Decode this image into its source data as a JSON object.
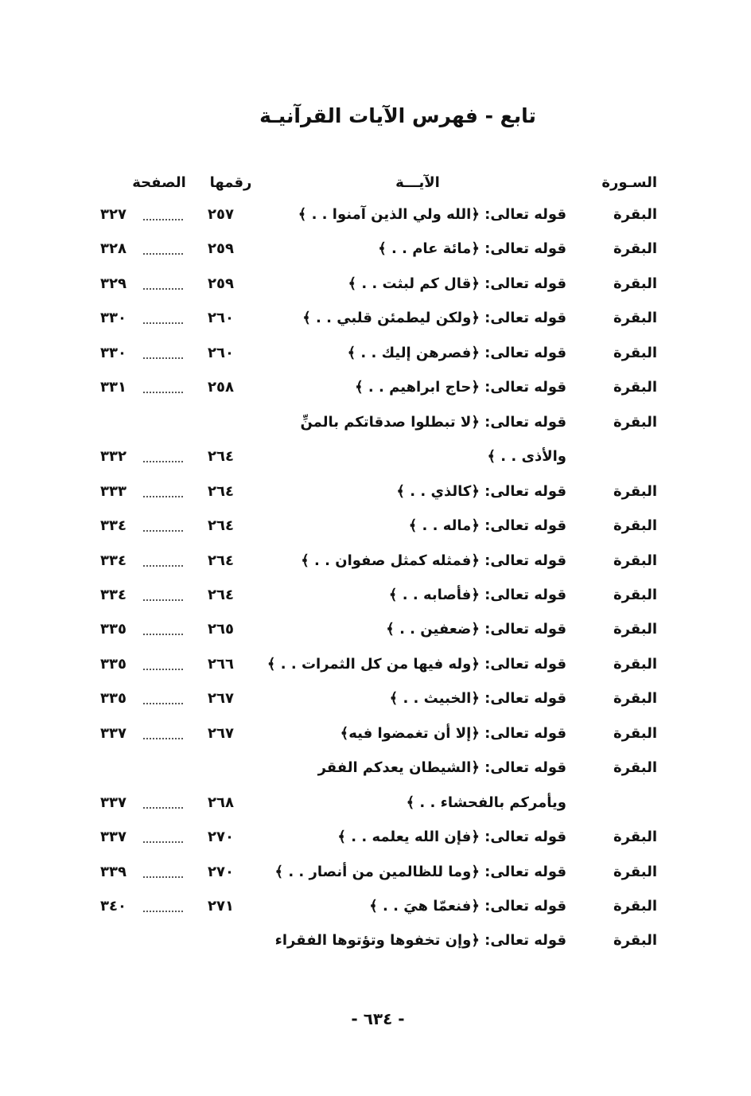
{
  "header": {
    "title": "تابع - فهرس الآيات القرآنيـة"
  },
  "table": {
    "columns": [
      "السـورة",
      "الآيـــة",
      "رقمها",
      "الصفحة"
    ],
    "rows": [
      {
        "surah": "البقرة",
        "verse": "قوله تعالى: ﴿الله ولي الذين آمنوا . . ﴾",
        "number": "٢٥٧",
        "page": "٣٢٧"
      },
      {
        "surah": "البقرة",
        "verse": "قوله تعالى: ﴿مائة عام . . ﴾",
        "number": "٢٥٩",
        "page": "٣٢٨"
      },
      {
        "surah": "البقرة",
        "verse": "قوله تعالى: ﴿قال كم لبثت . . ﴾",
        "number": "٢٥٩",
        "page": "٣٢٩"
      },
      {
        "surah": "البقرة",
        "verse": "قوله تعالى: ﴿ولكن ليطمئن قلبي . . ﴾",
        "number": "٢٦٠",
        "page": "٣٣٠"
      },
      {
        "surah": "البقرة",
        "verse": "قوله تعالى: ﴿فصرهن إليك . . ﴾",
        "number": "٢٦٠",
        "page": "٣٣٠"
      },
      {
        "surah": "البقرة",
        "verse": "قوله تعالى: ﴿حاج ابراهيم . . ﴾",
        "number": "٢٥٨",
        "page": "٣٣١"
      },
      {
        "surah": "البقرة",
        "verse": "قوله تعالى: ﴿لا تبطلوا صدقاتكم بالمنِّ"
      },
      {
        "verse": "والأذى . . ﴾",
        "number": "٢٦٤",
        "page": "٣٣٢"
      },
      {
        "surah": "البقرة",
        "verse": "قوله تعالى: ﴿كالذي . . ﴾",
        "number": "٢٦٤",
        "page": "٣٣٣"
      },
      {
        "surah": "البقرة",
        "verse": "قوله تعالى: ﴿ماله . . ﴾",
        "number": "٢٦٤",
        "page": "٣٣٤"
      },
      {
        "surah": "البقرة",
        "verse": "قوله تعالى: ﴿فمثله كمثل صفوان . . ﴾",
        "number": "٢٦٤",
        "page": "٣٣٤"
      },
      {
        "surah": "البقرة",
        "verse": "قوله تعالى: ﴿فأصابه . . ﴾",
        "number": "٢٦٤",
        "page": "٣٣٤"
      },
      {
        "surah": "البقرة",
        "verse": "قوله تعالى: ﴿ضعفين . . ﴾",
        "number": "٢٦٥",
        "page": "٣٣٥"
      },
      {
        "surah": "البقرة",
        "verse": "قوله تعالى: ﴿وله فيها من كل الثمرات . . ﴾",
        "number": "٢٦٦",
        "page": "٣٣٥"
      },
      {
        "surah": "البقرة",
        "verse": "قوله تعالى: ﴿الخبيث . . ﴾",
        "number": "٢٦٧",
        "page": "٣٣٥"
      },
      {
        "surah": "البقرة",
        "verse": "قوله تعالى: ﴿إلا أن تغمضوا فيه﴾",
        "number": "٢٦٧",
        "page": "٣٣٧"
      },
      {
        "surah": "البقرة",
        "verse": "قوله تعالى: ﴿الشيطان يعدكم الفقر"
      },
      {
        "verse": "ويأمركم بالفحشاء . . ﴾",
        "number": "٢٦٨",
        "page": "٣٣٧"
      },
      {
        "surah": "البقرة",
        "verse": "قوله تعالى: ﴿فإن الله يعلمه . . ﴾",
        "number": "٢٧٠",
        "page": "٣٣٧"
      },
      {
        "surah": "البقرة",
        "verse": "قوله تعالى: ﴿وما للظالمين من أنصار . . ﴾",
        "number": "٢٧٠",
        "page": "٣٣٩"
      },
      {
        "surah": "البقرة",
        "verse": "قوله تعالى: ﴿فنعمّا هيَ . . ﴾",
        "number": "٢٧١",
        "page": "٣٤٠"
      },
      {
        "surah": "البقرة",
        "verse": "قوله تعالى: ﴿وإن تخفوها وتؤتوها الفقراء"
      }
    ]
  },
  "footer": {
    "page_number": "- ٦٣٤ -"
  }
}
